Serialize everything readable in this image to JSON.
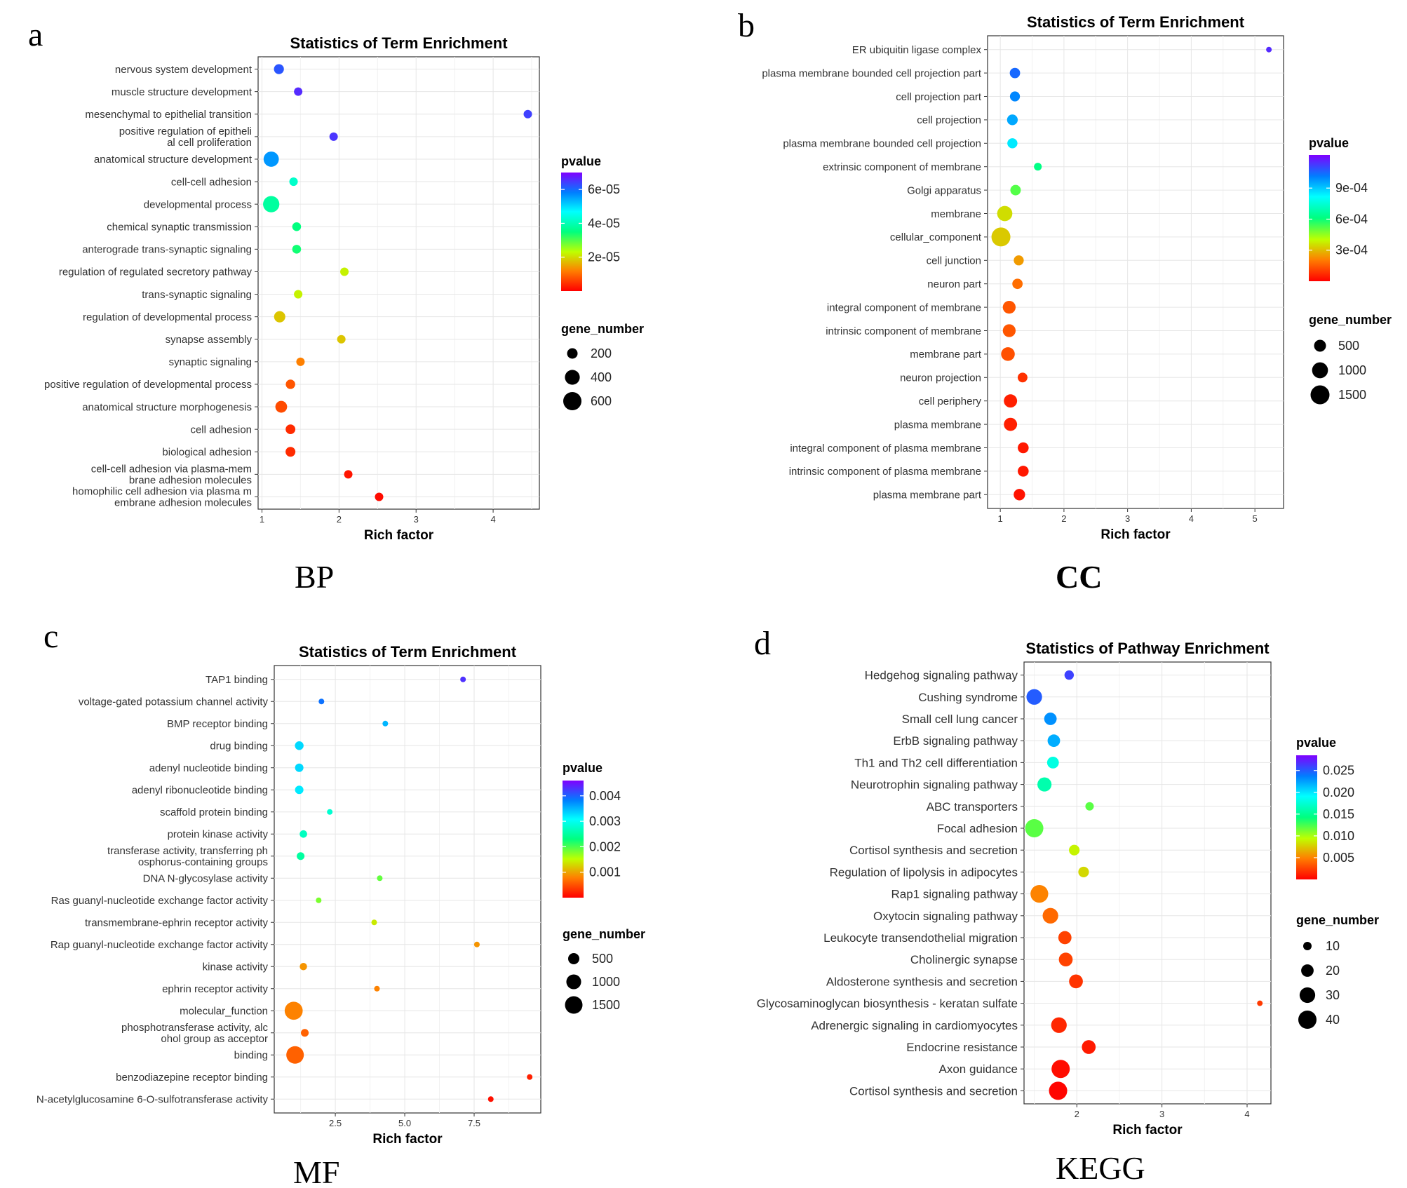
{
  "figure_captions": {
    "a": "BP",
    "b": "CC",
    "c": "MF",
    "d": "KEGG"
  },
  "chart_data": [
    {
      "panel": "a",
      "caption": "BP",
      "type": "scatter",
      "title": "Statistics of Term Enrichment",
      "xlabel": "Rich factor",
      "xlim": [
        0.95,
        4.6
      ],
      "xticks": [
        1,
        2,
        3,
        4
      ],
      "xtick_labels": [
        "1",
        "2",
        "3",
        "4"
      ],
      "categories": [
        [
          "nervous system development"
        ],
        [
          "muscle structure development"
        ],
        [
          "mesenchymal to epithelial transition"
        ],
        [
          "positive regulation of epitheli",
          "al cell proliferation"
        ],
        [
          "anatomical structure development"
        ],
        [
          "cell-cell adhesion"
        ],
        [
          "developmental process"
        ],
        [
          "chemical synaptic transmission"
        ],
        [
          "anterograde trans-synaptic signaling"
        ],
        [
          "regulation of regulated secretory pathway"
        ],
        [
          "trans-synaptic signaling"
        ],
        [
          "regulation of developmental process"
        ],
        [
          "synapse assembly"
        ],
        [
          "synaptic signaling"
        ],
        [
          "positive regulation of developmental process"
        ],
        [
          "anatomical structure morphogenesis"
        ],
        [
          "cell adhesion"
        ],
        [
          "biological adhesion"
        ],
        [
          "cell-cell adhesion via plasma-mem",
          "brane adhesion molecules"
        ],
        [
          "homophilic cell adhesion via plasma m",
          "embrane adhesion molecules"
        ]
      ],
      "rich_factor": [
        1.22,
        1.47,
        4.45,
        1.93,
        1.12,
        1.41,
        1.12,
        1.45,
        1.45,
        2.07,
        1.47,
        1.23,
        2.03,
        1.5,
        1.37,
        1.25,
        1.37,
        1.37,
        2.12,
        2.52
      ],
      "gene_number": [
        180,
        120,
        20,
        50,
        420,
        130,
        480,
        140,
        140,
        50,
        130,
        230,
        50,
        120,
        160,
        250,
        170,
        175,
        60,
        55
      ],
      "pvalue": [
        6.2e-05,
        6.6e-05,
        6.4e-05,
        6.5e-05,
        5.6e-05,
        4.2e-05,
        3.8e-05,
        3.5e-05,
        3.4e-05,
        2.2e-05,
        2.2e-05,
        1.8e-05,
        1.8e-05,
        1.2e-05,
        8e-06,
        7e-06,
        4e-06,
        4e-06,
        2e-06,
        1e-06
      ],
      "pvalue_range": [
        0,
        7e-05
      ],
      "pvalue_legend": {
        "title": "pvalue",
        "ticks": [
          6e-05,
          4e-05,
          2e-05
        ],
        "labels": [
          "6e-05",
          "4e-05",
          "2e-05"
        ]
      },
      "size_legend": {
        "title": "gene_number",
        "values": [
          200,
          400,
          600
        ],
        "labels": [
          "200",
          "400",
          "600"
        ]
      }
    },
    {
      "panel": "b",
      "caption": "CC",
      "type": "scatter",
      "title": "Statistics of Term Enrichment",
      "xlabel": "Rich factor",
      "xlim": [
        0.8,
        5.45
      ],
      "xticks": [
        1,
        2,
        3,
        4,
        5
      ],
      "xtick_labels": [
        "1",
        "2",
        "3",
        "4",
        "5"
      ],
      "categories": [
        [
          "ER ubiquitin ligase complex"
        ],
        [
          "plasma membrane bounded cell projection part"
        ],
        [
          "cell projection part"
        ],
        [
          "cell projection"
        ],
        [
          "plasma membrane bounded cell projection"
        ],
        [
          "extrinsic component of membrane"
        ],
        [
          "Golgi apparatus"
        ],
        [
          "membrane"
        ],
        [
          "cellular_component"
        ],
        [
          "cell junction"
        ],
        [
          "neuron part"
        ],
        [
          "integral component of membrane"
        ],
        [
          "intrinsic component of membrane"
        ],
        [
          "membrane part"
        ],
        [
          "neuron projection"
        ],
        [
          "cell periphery"
        ],
        [
          "plasma membrane"
        ],
        [
          "integral component of plasma membrane"
        ],
        [
          "intrinsic component of plasma membrane"
        ],
        [
          "plasma membrane part"
        ]
      ],
      "rich_factor": [
        5.22,
        1.23,
        1.23,
        1.19,
        1.19,
        1.59,
        1.24,
        1.07,
        1.01,
        1.29,
        1.27,
        1.14,
        1.14,
        1.12,
        1.35,
        1.16,
        1.16,
        1.36,
        1.36,
        1.3
      ],
      "gene_number": [
        25,
        350,
        320,
        380,
        330,
        160,
        360,
        900,
        1500,
        320,
        350,
        600,
        600,
        700,
        300,
        650,
        640,
        400,
        400,
        450
      ],
      "pvalue": [
        0.00115,
        0.00105,
        0.001,
        0.00095,
        0.00085,
        0.00062,
        0.00052,
        0.00035,
        0.00032,
        0.00025,
        0.00018,
        0.00014,
        0.00014,
        0.00013,
        8e-05,
        5e-05,
        5e-05,
        4e-05,
        4e-05,
        3e-05
      ],
      "pvalue_range": [
        0,
        0.00122
      ],
      "pvalue_legend": {
        "title": "pvalue",
        "ticks": [
          0.0009,
          0.0006,
          0.0003
        ],
        "labels": [
          "9e-04",
          "6e-04",
          "3e-04"
        ]
      },
      "size_legend": {
        "title": "gene_number",
        "values": [
          500,
          1000,
          1500
        ],
        "labels": [
          "500",
          "1000",
          "1500"
        ]
      }
    },
    {
      "panel": "c",
      "caption": "MF",
      "type": "scatter",
      "title": "Statistics of Term Enrichment",
      "xlabel": "Rich factor",
      "xlim": [
        0.3,
        9.9
      ],
      "xticks": [
        2.5,
        5.0,
        7.5
      ],
      "xtick_labels": [
        "2.5",
        "5.0",
        "7.5"
      ],
      "categories": [
        [
          "TAP1 binding"
        ],
        [
          "voltage-gated potassium channel activity"
        ],
        [
          "BMP receptor binding"
        ],
        [
          "drug binding"
        ],
        [
          "adenyl nucleotide binding"
        ],
        [
          "adenyl ribonucleotide binding"
        ],
        [
          "scaffold protein binding"
        ],
        [
          "protein kinase activity"
        ],
        [
          "transferase activity, transferring ph",
          "osphorus-containing groups"
        ],
        [
          "DNA N-glycosylase activity"
        ],
        [
          "Ras guanyl-nucleotide exchange factor activity"
        ],
        [
          "transmembrane-ephrin receptor activity"
        ],
        [
          "Rap guanyl-nucleotide exchange factor activity"
        ],
        [
          "kinase activity"
        ],
        [
          "ephrin receptor activity"
        ],
        [
          "molecular_function"
        ],
        [
          "phosphotransferase activity, alc",
          "ohol group as acceptor"
        ],
        [
          "binding"
        ],
        [
          "benzodiazepine receptor binding"
        ],
        [
          "N-acetylglucosamine 6-O-sulfotransferase activity"
        ]
      ],
      "rich_factor": [
        7.1,
        2.0,
        4.3,
        1.2,
        1.2,
        1.2,
        2.3,
        1.35,
        1.25,
        4.1,
        1.9,
        3.9,
        7.6,
        1.35,
        4.0,
        1.0,
        1.4,
        1.05,
        9.5,
        8.1
      ],
      "gene_number": [
        15,
        40,
        20,
        250,
        230,
        230,
        30,
        160,
        180,
        15,
        30,
        25,
        15,
        150,
        20,
        1600,
        180,
        1500,
        10,
        15
      ],
      "pvalue": [
        0.0043,
        0.0039,
        0.0035,
        0.0033,
        0.0033,
        0.0032,
        0.0028,
        0.0027,
        0.0025,
        0.0019,
        0.0018,
        0.0014,
        0.0009,
        0.0009,
        0.0008,
        0.0008,
        0.0006,
        0.0006,
        0.0002,
        0.0001
      ],
      "pvalue_range": [
        0,
        0.0046
      ],
      "pvalue_legend": {
        "title": "pvalue",
        "ticks": [
          0.004,
          0.003,
          0.002,
          0.001
        ],
        "labels": [
          "0.004",
          "0.003",
          "0.002",
          "0.001"
        ]
      },
      "size_legend": {
        "title": "gene_number",
        "values": [
          500,
          1000,
          1500
        ],
        "labels": [
          "500",
          "1000",
          "1500"
        ]
      }
    },
    {
      "panel": "d",
      "caption": "KEGG",
      "type": "scatter",
      "title": "Statistics of Pathway Enrichment",
      "xlabel": "Rich factor",
      "xlim": [
        1.38,
        4.28
      ],
      "xticks": [
        2,
        3,
        4
      ],
      "xtick_labels": [
        "2",
        "3",
        "4"
      ],
      "categories": [
        [
          "Hedgehog signaling pathway"
        ],
        [
          "Cushing syndrome"
        ],
        [
          "Small cell lung cancer"
        ],
        [
          "ErbB signaling pathway"
        ],
        [
          "Th1 and Th2 cell differentiation"
        ],
        [
          "Neurotrophin signaling pathway"
        ],
        [
          "ABC transporters"
        ],
        [
          "Focal adhesion"
        ],
        [
          "Cortisol synthesis and secretion"
        ],
        [
          "Regulation of lipolysis in adipocytes"
        ],
        [
          "Rap1 signaling pathway"
        ],
        [
          "Oxytocin signaling pathway"
        ],
        [
          "Leukocyte transendothelial migration"
        ],
        [
          "Cholinergic synapse"
        ],
        [
          "Aldosterone synthesis and secretion"
        ],
        [
          "Glycosaminoglycan biosynthesis - keratan sulfate"
        ],
        [
          "Adrenergic signaling in cardiomyocytes"
        ],
        [
          "Endocrine resistance"
        ],
        [
          "Axon guidance"
        ],
        [
          "Cortisol synthesis and secretion"
        ]
      ],
      "rich_factor": [
        1.91,
        1.5,
        1.69,
        1.73,
        1.72,
        1.62,
        2.15,
        1.5,
        1.97,
        2.08,
        1.56,
        1.69,
        1.86,
        1.87,
        1.99,
        4.15,
        1.79,
        2.14,
        1.81,
        1.78
      ],
      "gene_number": [
        12,
        30,
        20,
        20,
        18,
        25,
        10,
        40,
        15,
        15,
        38,
        30,
        22,
        24,
        24,
        5,
        30,
        24,
        42,
        48
      ],
      "pvalue": [
        0.026,
        0.025,
        0.023,
        0.022,
        0.018,
        0.016,
        0.012,
        0.012,
        0.009,
        0.008,
        0.005,
        0.004,
        0.0025,
        0.0025,
        0.002,
        0.0022,
        0.0015,
        0.001,
        0.0005,
        0.0002
      ],
      "pvalue_range": [
        0,
        0.0285
      ],
      "pvalue_legend": {
        "title": "pvalue",
        "ticks": [
          0.025,
          0.02,
          0.015,
          0.01,
          0.005
        ],
        "labels": [
          "0.025",
          "0.020",
          "0.015",
          "0.010",
          "0.005"
        ]
      },
      "size_legend": {
        "title": "gene_number",
        "values": [
          10,
          20,
          30,
          40
        ],
        "labels": [
          "10",
          "20",
          "30",
          "40"
        ]
      }
    }
  ]
}
